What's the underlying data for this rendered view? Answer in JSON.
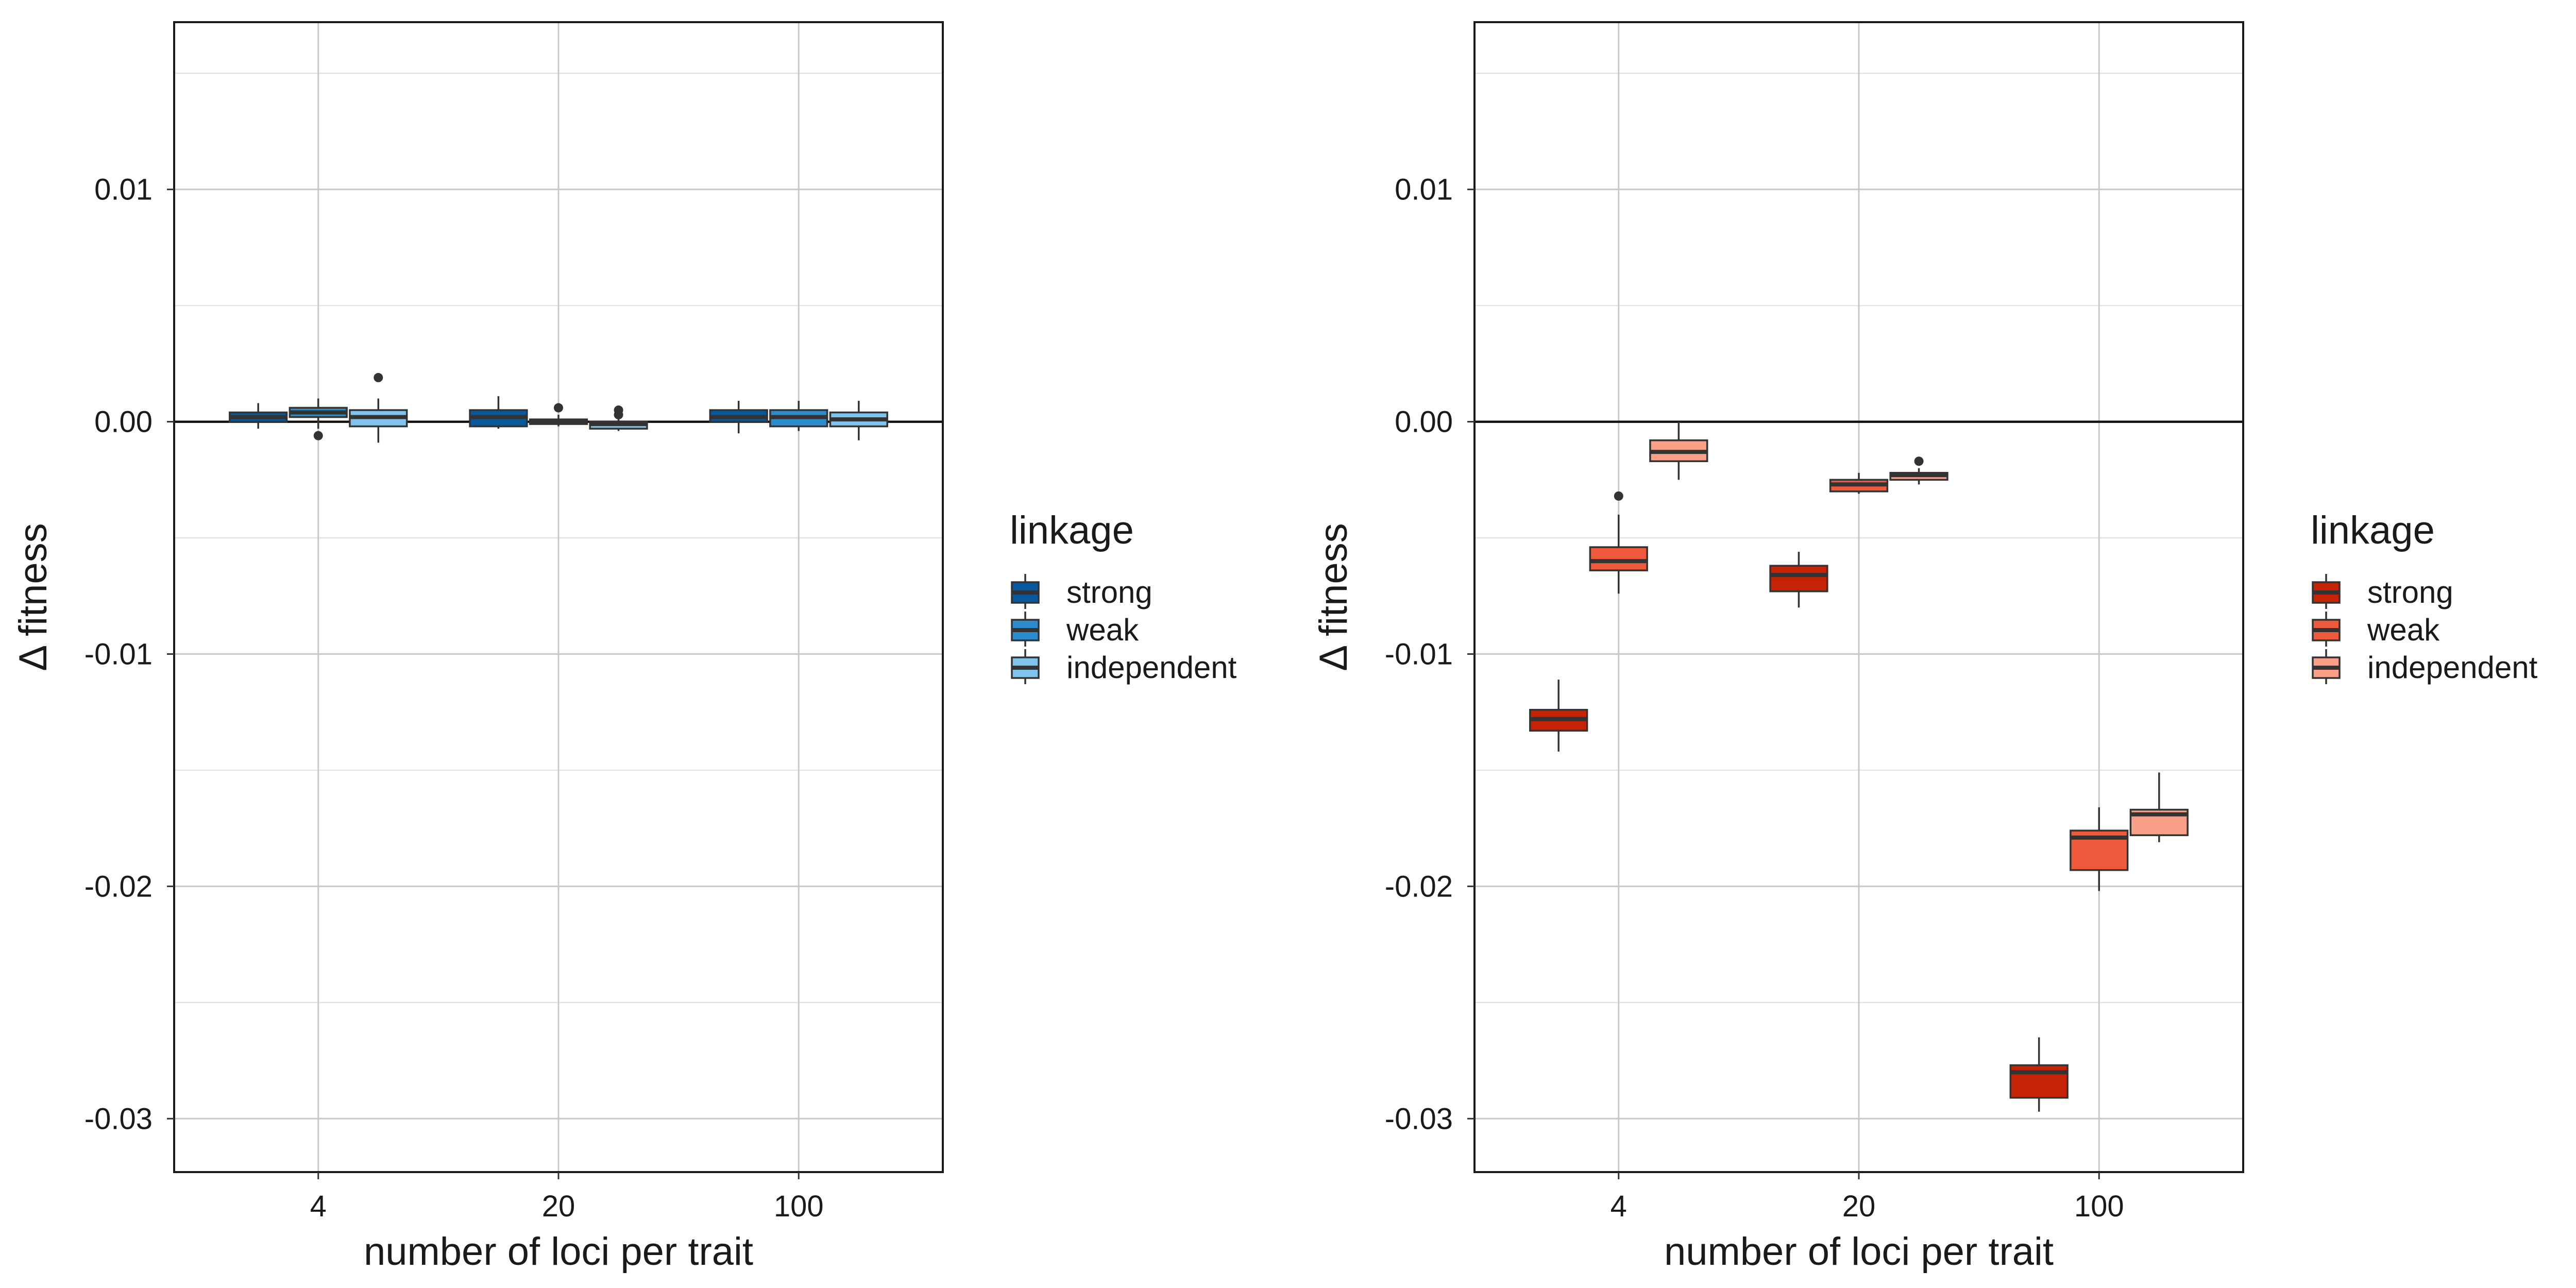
{
  "chart_data": [
    {
      "type": "boxplot",
      "panel": "left",
      "xlabel": "number of loci per trait",
      "ylabel": "Δ fitness",
      "categories": [
        "4",
        "20",
        "100"
      ],
      "yticks": [
        0.01,
        0.0,
        -0.01,
        -0.02,
        -0.03
      ],
      "ytick_labels": [
        "0.01",
        "0.00",
        "-0.01",
        "-0.02",
        "-0.03"
      ],
      "ylim": [
        -0.0323,
        0.0172
      ],
      "reference_line": 0.0,
      "grid": true,
      "legend": {
        "title": "linkage",
        "placement": "right",
        "entries": [
          {
            "label": "strong",
            "color": "#08589e"
          },
          {
            "label": "weak",
            "color": "#2b8cce"
          },
          {
            "label": "independent",
            "color": "#7fc4ec"
          }
        ]
      },
      "series": [
        {
          "name": "strong",
          "color": "#08589e",
          "boxes": [
            {
              "category": "4",
              "whisker_low": -0.0003,
              "q1": 0.0,
              "median": 0.0002,
              "q3": 0.0004,
              "whisker_high": 0.0008,
              "outliers": []
            },
            {
              "category": "20",
              "whisker_low": -0.0003,
              "q1": -0.0002,
              "median": 0.0002,
              "q3": 0.0005,
              "whisker_high": 0.0011,
              "outliers": []
            },
            {
              "category": "100",
              "whisker_low": -0.0005,
              "q1": 0.0,
              "median": 0.0002,
              "q3": 0.0005,
              "whisker_high": 0.0009,
              "outliers": []
            }
          ]
        },
        {
          "name": "weak",
          "color": "#2b8cce",
          "boxes": [
            {
              "category": "4",
              "whisker_low": -0.0003,
              "q1": 0.0002,
              "median": 0.0004,
              "q3": 0.0006,
              "whisker_high": 0.001,
              "outliers": [
                -0.0006
              ]
            },
            {
              "category": "20",
              "whisker_low": -0.0002,
              "q1": -0.0001,
              "median": 0.0,
              "q3": 0.0001,
              "whisker_high": 0.0003,
              "outliers": [
                0.0006
              ]
            },
            {
              "category": "100",
              "whisker_low": -0.0004,
              "q1": -0.0002,
              "median": 0.0002,
              "q3": 0.0005,
              "whisker_high": 0.0009,
              "outliers": []
            }
          ]
        },
        {
          "name": "independent",
          "color": "#7fc4ec",
          "boxes": [
            {
              "category": "4",
              "whisker_low": -0.0009,
              "q1": -0.0002,
              "median": 0.0002,
              "q3": 0.0005,
              "whisker_high": 0.001,
              "outliers": [
                0.0019
              ]
            },
            {
              "category": "20",
              "whisker_low": -0.0004,
              "q1": -0.0003,
              "median": -0.0001,
              "q3": 0.0,
              "whisker_high": 0.0001,
              "outliers": [
                0.0003,
                0.0005
              ]
            },
            {
              "category": "100",
              "whisker_low": -0.0008,
              "q1": -0.0002,
              "median": 0.0001,
              "q3": 0.0004,
              "whisker_high": 0.0009,
              "outliers": []
            }
          ]
        }
      ]
    },
    {
      "type": "boxplot",
      "panel": "right",
      "xlabel": "number of loci per trait",
      "ylabel": "Δ fitness",
      "categories": [
        "4",
        "20",
        "100"
      ],
      "yticks": [
        0.01,
        0.0,
        -0.01,
        -0.02,
        -0.03
      ],
      "ytick_labels": [
        "0.01",
        "0.00",
        "-0.01",
        "-0.02",
        "-0.03"
      ],
      "ylim": [
        -0.0323,
        0.0172
      ],
      "reference_line": 0.0,
      "grid": true,
      "legend": {
        "title": "linkage",
        "placement": "right",
        "entries": [
          {
            "label": "strong",
            "color": "#c42305"
          },
          {
            "label": "weak",
            "color": "#ef5a3c"
          },
          {
            "label": "independent",
            "color": "#fc9f88"
          }
        ]
      },
      "series": [
        {
          "name": "strong",
          "color": "#c42305",
          "boxes": [
            {
              "category": "4",
              "whisker_low": -0.0142,
              "q1": -0.0133,
              "median": -0.0128,
              "q3": -0.0124,
              "whisker_high": -0.0111,
              "outliers": []
            },
            {
              "category": "20",
              "whisker_low": -0.008,
              "q1": -0.0073,
              "median": -0.0066,
              "q3": -0.0062,
              "whisker_high": -0.0056,
              "outliers": []
            },
            {
              "category": "100",
              "whisker_low": -0.0297,
              "q1": -0.0291,
              "median": -0.028,
              "q3": -0.0277,
              "whisker_high": -0.0265,
              "outliers": []
            }
          ]
        },
        {
          "name": "weak",
          "color": "#ef5a3c",
          "boxes": [
            {
              "category": "4",
              "whisker_low": -0.0074,
              "q1": -0.0064,
              "median": -0.006,
              "q3": -0.0054,
              "whisker_high": -0.004,
              "outliers": [
                -0.0032
              ]
            },
            {
              "category": "20",
              "whisker_low": -0.0031,
              "q1": -0.003,
              "median": -0.0027,
              "q3": -0.0025,
              "whisker_high": -0.0022,
              "outliers": []
            },
            {
              "category": "100",
              "whisker_low": -0.0202,
              "q1": -0.0193,
              "median": -0.0179,
              "q3": -0.0176,
              "whisker_high": -0.0166,
              "outliers": []
            }
          ]
        },
        {
          "name": "independent",
          "color": "#fc9f88",
          "boxes": [
            {
              "category": "4",
              "whisker_low": -0.0025,
              "q1": -0.0017,
              "median": -0.0013,
              "q3": -0.0008,
              "whisker_high": 0.0,
              "outliers": []
            },
            {
              "category": "20",
              "whisker_low": -0.0027,
              "q1": -0.0025,
              "median": -0.0023,
              "q3": -0.0022,
              "whisker_high": -0.002,
              "outliers": [
                -0.0017
              ]
            },
            {
              "category": "100",
              "whisker_low": -0.0181,
              "q1": -0.0178,
              "median": -0.0169,
              "q3": -0.0167,
              "whisker_high": -0.0151,
              "outliers": []
            }
          ]
        }
      ]
    }
  ]
}
